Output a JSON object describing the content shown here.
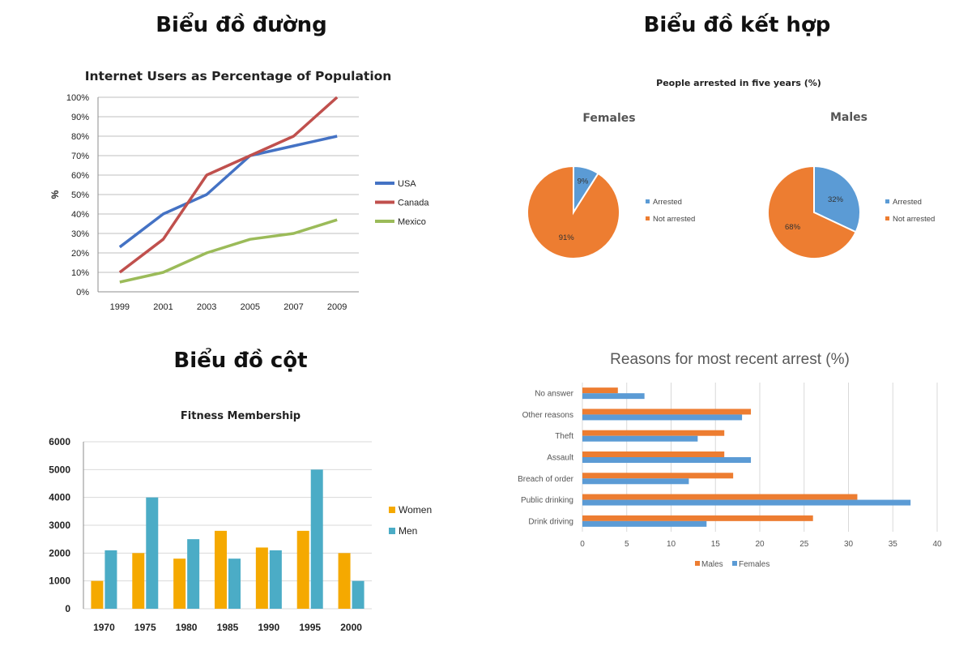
{
  "sections": {
    "line": "Biểu đồ đường",
    "combo": "Biểu đồ kết hợp",
    "column": "Biểu đồ cột"
  },
  "colors": {
    "usa": "#4472c4",
    "canada": "#c0504d",
    "mexico": "#9bbb59",
    "women": "#f5a900",
    "men": "#4bacc6",
    "arrested": "#5b9bd5",
    "not_arrested": "#ed7d31",
    "males": "#ed7d31",
    "females": "#5b9bd5"
  },
  "chart_data": [
    {
      "type": "line",
      "title": "Internet Users as Percentage of Population",
      "xlabel": "",
      "ylabel": "%",
      "x": [
        "1999",
        "2001",
        "2003",
        "2005",
        "2007",
        "2009"
      ],
      "ylim": [
        0,
        100
      ],
      "yticks": [
        "0%",
        "10%",
        "20%",
        "30%",
        "40%",
        "50%",
        "60%",
        "70%",
        "80%",
        "90%",
        "100%"
      ],
      "legend_position": "right",
      "grid": true,
      "series": [
        {
          "name": "USA",
          "values": [
            23,
            40,
            50,
            70,
            75,
            80
          ]
        },
        {
          "name": "Canada",
          "values": [
            10,
            27,
            60,
            70,
            80,
            100
          ]
        },
        {
          "name": "Mexico",
          "values": [
            5,
            10,
            20,
            27,
            30,
            37
          ]
        }
      ]
    },
    {
      "type": "pie",
      "title": "People arrested in five years (%)",
      "legend_position": "right",
      "pies": [
        {
          "name": "Females",
          "slices": [
            {
              "label": "Arrested",
              "value": 9,
              "text": "9%"
            },
            {
              "label": "Not arrested",
              "value": 91,
              "text": "91%"
            }
          ]
        },
        {
          "name": "Males",
          "slices": [
            {
              "label": "Arrested",
              "value": 32,
              "text": "32%"
            },
            {
              "label": "Not arrested",
              "value": 68,
              "text": "68%"
            }
          ]
        }
      ]
    },
    {
      "type": "bar",
      "title": "Fitness Membership",
      "xlabel": "",
      "ylabel": "",
      "categories": [
        "1970",
        "1975",
        "1980",
        "1985",
        "1990",
        "1995",
        "2000"
      ],
      "ylim": [
        0,
        6000
      ],
      "yticks": [
        "0",
        "1000",
        "2000",
        "3000",
        "4000",
        "5000",
        "6000"
      ],
      "legend_position": "right",
      "grid": true,
      "series": [
        {
          "name": "Women",
          "values": [
            1000,
            2000,
            1800,
            2800,
            2200,
            2800,
            2000
          ]
        },
        {
          "name": "Men",
          "values": [
            2100,
            4000,
            2500,
            1800,
            2100,
            5000,
            1000
          ]
        }
      ]
    },
    {
      "type": "bar",
      "orientation": "horizontal",
      "title": "Reasons for most recent arrest (%)",
      "xlabel": "",
      "ylabel": "",
      "categories": [
        "No answer",
        "Other reasons",
        "Theft",
        "Assault",
        "Breach of order",
        "Public drinking",
        "Drink driving"
      ],
      "xlim": [
        0,
        40
      ],
      "xticks": [
        "0",
        "5",
        "10",
        "15",
        "20",
        "25",
        "30",
        "35",
        "40"
      ],
      "legend_position": "bottom",
      "grid": true,
      "series": [
        {
          "name": "Males",
          "values": [
            4,
            19,
            16,
            16,
            17,
            31,
            26
          ]
        },
        {
          "name": "Females",
          "values": [
            7,
            18,
            13,
            19,
            12,
            37,
            14
          ]
        }
      ]
    }
  ]
}
